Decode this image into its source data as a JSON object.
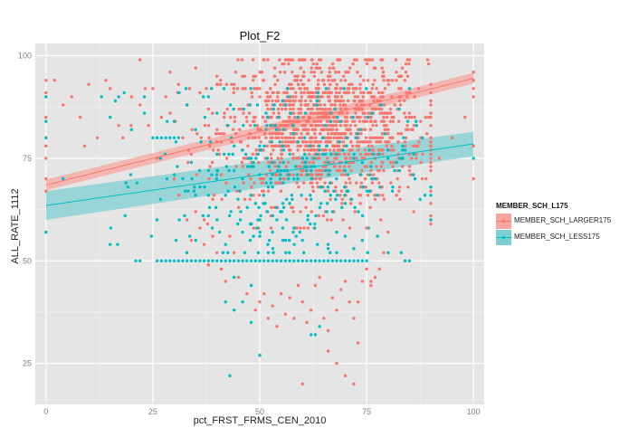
{
  "colors": {
    "panel_bg": "#e5e5e5",
    "grid_major": "#ffffff",
    "grid_minor": "#f2f2f2",
    "series_larger": "#f8766d",
    "series_less": "#00bfc4",
    "band_larger": "#f8a5a0",
    "band_less": "#7fcfd1"
  },
  "chart_data": {
    "type": "scatter",
    "title": "Plot_F2",
    "xlabel": "pct_FRST_FRMS_CEN_2010",
    "ylabel": "ALL_RATE_1112",
    "xlim": [
      -2.5,
      102.5
    ],
    "ylim": [
      15,
      103
    ],
    "x_ticks": [
      0,
      25,
      50,
      75,
      100
    ],
    "y_ticks": [
      25,
      50,
      75,
      100
    ],
    "grid": true,
    "legend": {
      "title": "MEMBER_SCH_L175",
      "position": "right",
      "entries": [
        "MEMBER_SCH_LARGER175",
        "MEMBER_SCH_LESS175"
      ]
    },
    "series": [
      {
        "name": "MEMBER_SCH_LARGER175",
        "color": "#f8766d",
        "fit": {
          "x": [
            0,
            100
          ],
          "y": [
            68.5,
            94.5
          ],
          "ci_halfwidth": [
            1.3,
            1.3
          ]
        },
        "cluster": {
          "x_center": 65,
          "x_spread": 12,
          "y_center": 82,
          "y_spread": 9,
          "count": 1350
        },
        "points": [
          [
            0,
            67
          ],
          [
            0,
            70
          ],
          [
            0,
            75
          ],
          [
            0,
            78
          ],
          [
            0,
            80
          ],
          [
            0,
            85
          ],
          [
            0,
            91
          ],
          [
            0,
            94
          ],
          [
            2,
            94
          ],
          [
            4,
            88
          ],
          [
            6,
            90
          ],
          [
            8,
            85
          ],
          [
            9,
            78
          ],
          [
            10,
            93
          ],
          [
            12,
            80
          ],
          [
            14,
            94
          ],
          [
            15,
            92
          ],
          [
            17,
            83
          ],
          [
            18,
            80
          ],
          [
            20,
            90
          ],
          [
            22,
            88
          ],
          [
            22,
            99
          ],
          [
            24,
            83
          ],
          [
            25,
            92
          ],
          [
            26,
            75
          ],
          [
            27,
            85
          ],
          [
            28,
            90
          ],
          [
            29,
            96
          ],
          [
            30,
            70
          ],
          [
            31,
            93
          ],
          [
            32,
            80
          ],
          [
            33,
            88
          ],
          [
            34,
            76
          ],
          [
            35,
            97
          ],
          [
            36,
            91
          ],
          [
            37,
            60
          ],
          [
            38,
            87
          ],
          [
            39,
            65
          ],
          [
            40,
            93
          ],
          [
            33,
            60
          ],
          [
            34,
            55
          ],
          [
            35,
            62
          ],
          [
            36,
            58
          ],
          [
            37,
            54
          ],
          [
            38,
            49
          ],
          [
            39,
            56
          ],
          [
            40,
            52
          ],
          [
            41,
            48
          ],
          [
            42,
            45
          ],
          [
            43,
            56
          ],
          [
            44,
            52
          ],
          [
            45,
            46
          ],
          [
            46,
            50
          ],
          [
            47,
            42
          ],
          [
            48,
            44
          ],
          [
            49,
            38
          ],
          [
            50,
            40
          ],
          [
            51,
            42
          ],
          [
            52,
            36
          ],
          [
            53,
            39
          ],
          [
            54,
            34
          ],
          [
            55,
            42
          ],
          [
            56,
            37
          ],
          [
            57,
            41
          ],
          [
            58,
            36
          ],
          [
            59,
            44
          ],
          [
            60,
            40
          ],
          [
            61,
            35
          ],
          [
            62,
            38
          ],
          [
            63,
            44
          ],
          [
            64,
            46
          ],
          [
            65,
            36
          ],
          [
            66,
            33
          ],
          [
            67,
            41
          ],
          [
            68,
            38
          ],
          [
            69,
            43
          ],
          [
            70,
            45
          ],
          [
            71,
            40
          ],
          [
            72,
            36
          ],
          [
            73,
            40
          ],
          [
            74,
            45
          ],
          [
            75,
            48
          ],
          [
            76,
            44
          ],
          [
            77,
            46
          ],
          [
            78,
            48
          ],
          [
            79,
            52
          ],
          [
            66,
            28
          ],
          [
            68,
            25
          ],
          [
            70,
            22
          ],
          [
            72,
            20
          ],
          [
            73,
            30
          ],
          [
            60,
            20
          ],
          [
            75,
            58
          ],
          [
            76,
            45
          ],
          [
            77,
            65
          ],
          [
            80,
            57
          ],
          [
            82,
            66
          ],
          [
            84,
            50
          ],
          [
            86,
            62
          ],
          [
            88,
            70
          ],
          [
            90,
            61
          ],
          [
            92,
            75
          ],
          [
            95,
            80
          ],
          [
            98,
            85
          ],
          [
            100,
            70
          ],
          [
            100,
            78
          ],
          [
            100,
            90
          ],
          [
            100,
            92
          ],
          [
            100,
            94
          ],
          [
            100,
            96
          ]
        ]
      },
      {
        "name": "MEMBER_SCH_LESS175",
        "color": "#00bfc4",
        "fit": {
          "x": [
            0,
            100
          ],
          "y": [
            63.5,
            78.5
          ],
          "ci_halfwidth": [
            3.5,
            3.0
          ]
        },
        "cluster": {
          "x_center": 55,
          "x_spread": 15,
          "y_center": 71,
          "y_spread": 11,
          "count": 320
        },
        "points": [
          [
            0,
            57
          ],
          [
            0,
            80
          ],
          [
            0,
            84
          ],
          [
            0,
            90
          ],
          [
            4,
            70
          ],
          [
            13,
            90
          ],
          [
            17,
            90
          ],
          [
            20,
            82
          ],
          [
            23,
            86
          ],
          [
            23,
            90
          ],
          [
            21,
            50
          ],
          [
            22,
            50
          ],
          [
            25,
            80
          ],
          [
            26,
            80
          ],
          [
            27,
            80
          ],
          [
            28,
            80
          ],
          [
            29,
            80
          ],
          [
            30,
            80
          ],
          [
            31,
            80
          ],
          [
            26,
            50
          ],
          [
            27,
            50
          ],
          [
            28,
            50
          ],
          [
            29,
            50
          ],
          [
            30,
            50
          ],
          [
            31,
            50
          ],
          [
            32,
            50
          ],
          [
            33,
            50
          ],
          [
            34,
            50
          ],
          [
            35,
            50
          ],
          [
            36,
            50
          ],
          [
            37,
            50
          ],
          [
            38,
            50
          ],
          [
            39,
            50
          ],
          [
            40,
            50
          ],
          [
            41,
            50
          ],
          [
            42,
            50
          ],
          [
            43,
            50
          ],
          [
            44,
            50
          ],
          [
            45,
            50
          ],
          [
            46,
            50
          ],
          [
            47,
            50
          ],
          [
            48,
            50
          ],
          [
            49,
            50
          ],
          [
            50,
            50
          ],
          [
            51,
            50
          ],
          [
            52,
            50
          ],
          [
            53,
            50
          ],
          [
            54,
            50
          ],
          [
            55,
            50
          ],
          [
            56,
            50
          ],
          [
            57,
            50
          ],
          [
            58,
            50
          ],
          [
            59,
            50
          ],
          [
            60,
            50
          ],
          [
            61,
            50
          ],
          [
            62,
            50
          ],
          [
            63,
            50
          ],
          [
            64,
            50
          ],
          [
            65,
            50
          ],
          [
            66,
            50
          ],
          [
            67,
            50
          ],
          [
            68,
            50
          ],
          [
            69,
            50
          ],
          [
            70,
            50
          ],
          [
            71,
            50
          ],
          [
            72,
            50
          ],
          [
            73,
            50
          ],
          [
            74,
            50
          ],
          [
            75,
            50
          ],
          [
            84,
            50
          ],
          [
            85,
            50
          ],
          [
            32,
            70
          ],
          [
            34,
            74
          ],
          [
            36,
            68
          ],
          [
            38,
            72
          ],
          [
            40,
            76
          ],
          [
            42,
            66
          ],
          [
            44,
            78
          ],
          [
            46,
            70
          ],
          [
            48,
            75
          ],
          [
            49,
            64
          ],
          [
            50,
            78
          ],
          [
            52,
            68
          ],
          [
            53,
            74
          ],
          [
            55,
            72
          ],
          [
            57,
            76
          ],
          [
            58,
            70
          ],
          [
            60,
            75
          ],
          [
            62,
            73
          ],
          [
            64,
            77
          ],
          [
            66,
            74
          ],
          [
            68,
            76
          ],
          [
            70,
            72
          ],
          [
            72,
            75
          ],
          [
            74,
            74
          ],
          [
            76,
            73
          ],
          [
            78,
            76
          ],
          [
            80,
            75
          ],
          [
            82,
            74
          ],
          [
            84,
            77
          ],
          [
            86,
            76
          ],
          [
            40,
            60
          ],
          [
            42,
            54
          ],
          [
            44,
            46
          ],
          [
            46,
            57
          ],
          [
            48,
            44
          ],
          [
            50,
            56
          ],
          [
            52,
            52
          ],
          [
            54,
            60
          ],
          [
            56,
            55
          ],
          [
            58,
            58
          ],
          [
            60,
            55
          ],
          [
            62,
            32
          ],
          [
            63,
            32
          ],
          [
            64,
            34
          ],
          [
            66,
            53
          ],
          [
            68,
            57
          ],
          [
            70,
            56
          ],
          [
            72,
            53
          ],
          [
            74,
            55
          ],
          [
            42,
            40
          ],
          [
            44,
            38
          ],
          [
            46,
            40
          ],
          [
            48,
            35
          ],
          [
            50,
            27
          ],
          [
            43,
            22
          ],
          [
            30,
            84
          ],
          [
            33,
            88
          ],
          [
            35,
            82
          ],
          [
            38,
            90
          ],
          [
            40,
            86
          ],
          [
            100,
            75
          ]
        ]
      }
    ]
  }
}
